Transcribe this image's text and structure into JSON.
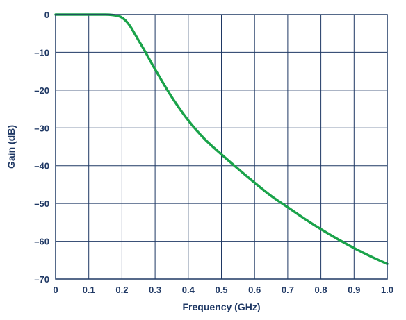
{
  "chart_data": {
    "type": "line",
    "title": "",
    "xlabel": "Frequency (GHz)",
    "ylabel": "Gain (dB)",
    "xlim": [
      0,
      1.0
    ],
    "ylim": [
      -70,
      0
    ],
    "x_ticks": [
      "0",
      "0.1",
      "0.2",
      "0.3",
      "0.4",
      "0.5",
      "0.6",
      "0.7",
      "0.8",
      "0.9",
      "1.0"
    ],
    "y_ticks": [
      "0",
      "–10",
      "–20",
      "–30",
      "–40",
      "–50",
      "–60",
      "–70"
    ],
    "grid": true,
    "series": [
      {
        "color": "#1aa34a",
        "x": [
          0,
          0.05,
          0.1,
          0.15,
          0.17,
          0.19,
          0.2,
          0.21,
          0.22,
          0.23,
          0.25,
          0.27,
          0.3,
          0.35,
          0.4,
          0.45,
          0.5,
          0.55,
          0.6,
          0.65,
          0.7,
          0.75,
          0.8,
          0.85,
          0.9,
          0.95,
          1.0
        ],
        "y": [
          0,
          0,
          0,
          0,
          -0.1,
          -0.4,
          -0.8,
          -1.5,
          -2.5,
          -3.8,
          -6.8,
          -9.8,
          -14.5,
          -21.8,
          -28.0,
          -33.0,
          -37.0,
          -40.8,
          -44.5,
          -48.0,
          -51.0,
          -54.0,
          -56.8,
          -59.4,
          -61.8,
          -64.0,
          -66.0
        ]
      }
    ]
  },
  "colors": {
    "frame": "#1f3864",
    "grid": "#1f3864",
    "text": "#1f3864",
    "line": "#1aa34a"
  }
}
